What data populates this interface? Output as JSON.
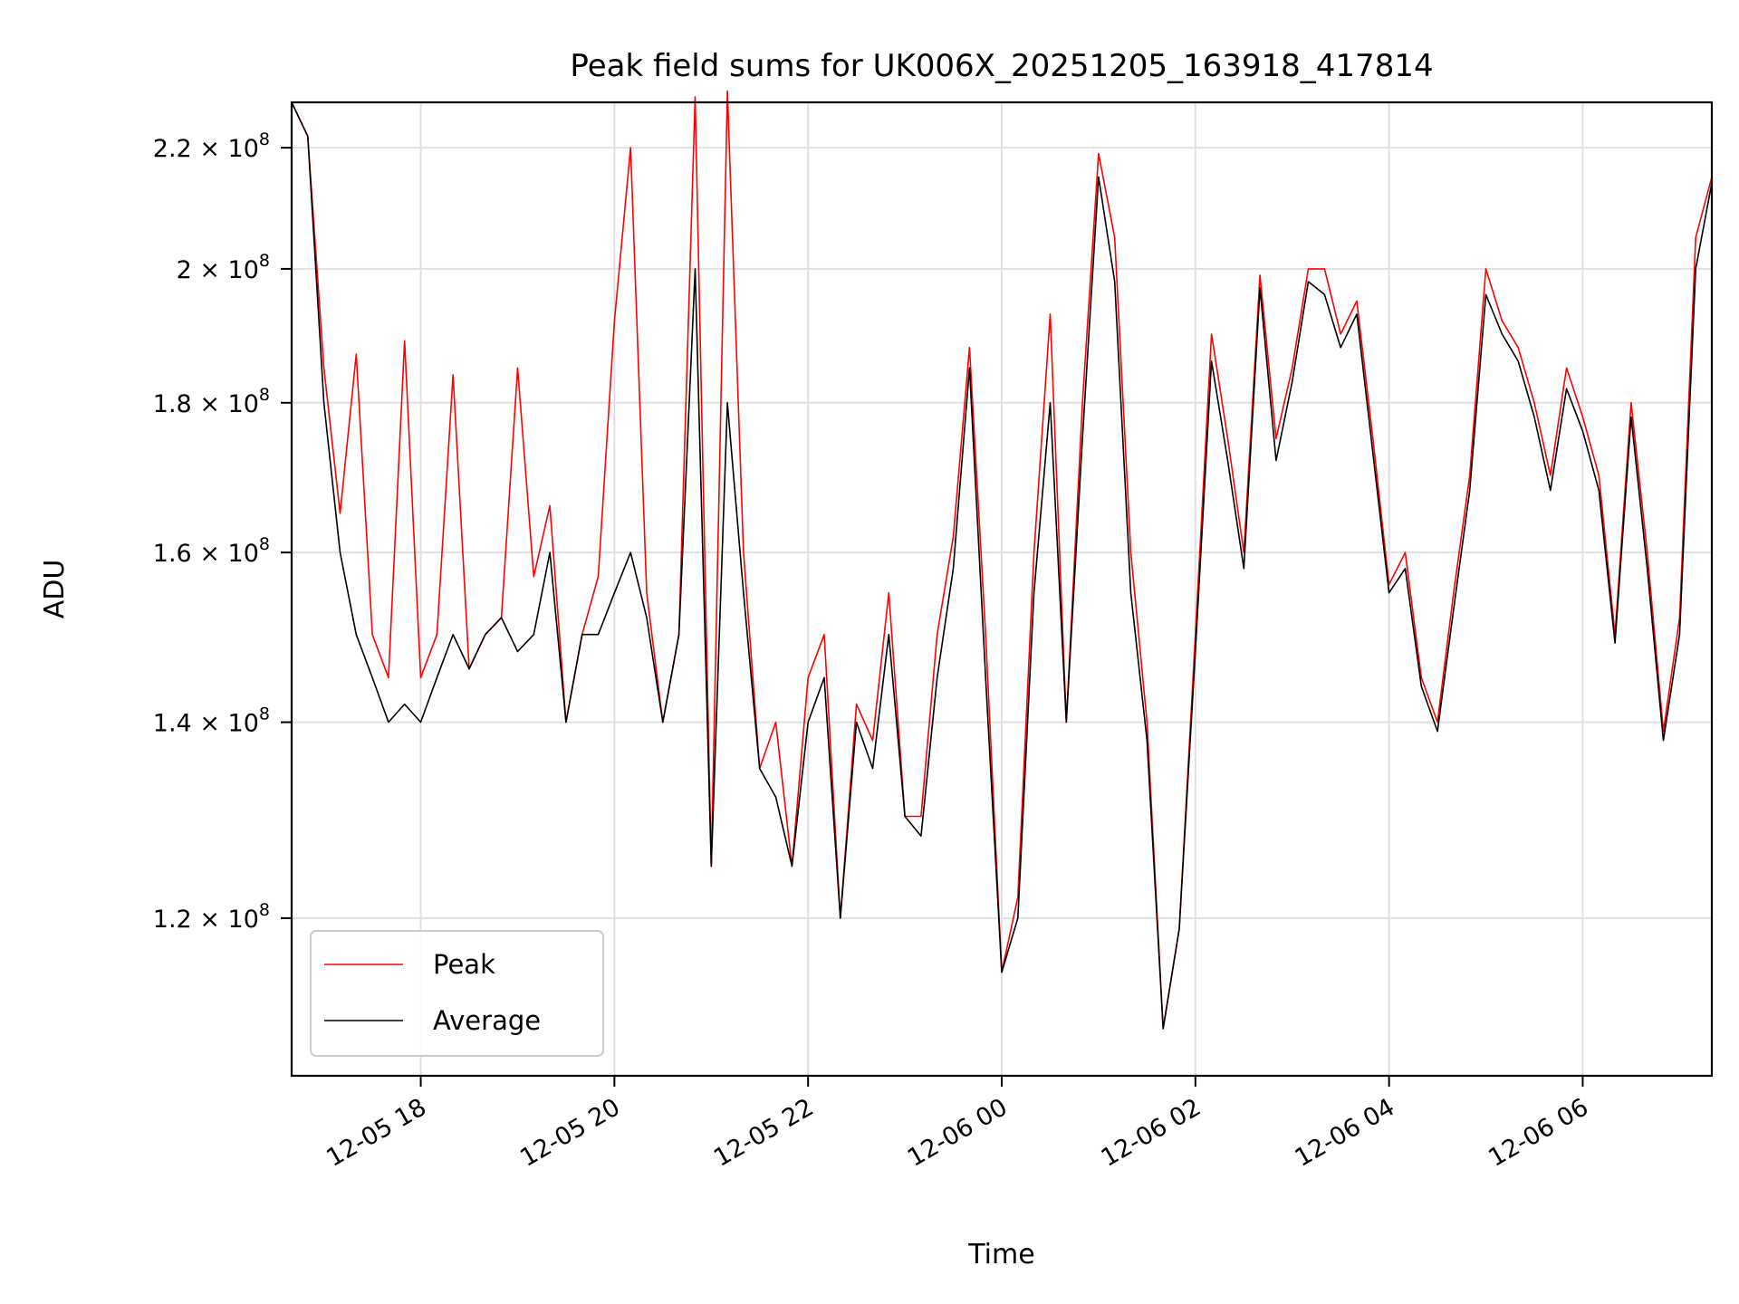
{
  "chart_data": {
    "type": "line",
    "title": "Peak field sums for UK006X_20251205_163918_417814",
    "xlabel": "Time",
    "ylabel": "ADU",
    "y_scale": "log",
    "grid": true,
    "legend_position": "lower-left",
    "xlim": [
      "2025-12-05 16:40",
      "2025-12-06 07:20"
    ],
    "ylim": [
      106000000,
      228000000
    ],
    "x_ticks": [
      "12-05 18",
      "12-05 20",
      "12-05 22",
      "12-06 00",
      "12-06 02",
      "12-06 04",
      "12-06 06"
    ],
    "y_ticks": [
      {
        "value": 120000000,
        "mantissa": "1.2",
        "base": "10",
        "exp": "8"
      },
      {
        "value": 140000000,
        "mantissa": "1.4",
        "base": "10",
        "exp": "8"
      },
      {
        "value": 160000000,
        "mantissa": "1.6",
        "base": "10",
        "exp": "8"
      },
      {
        "value": 180000000,
        "mantissa": "1.8",
        "base": "10",
        "exp": "8"
      },
      {
        "value": 200000000,
        "mantissa": "2",
        "base": "10",
        "exp": "8"
      },
      {
        "value": 220000000,
        "mantissa": "2.2",
        "base": "10",
        "exp": "8"
      }
    ],
    "series": [
      {
        "name": "Peak",
        "color": "#ff0000",
        "x": [
          "2025-12-05 16:40",
          "2025-12-05 16:50",
          "2025-12-05 17:00",
          "2025-12-05 17:10",
          "2025-12-05 17:20",
          "2025-12-05 17:30",
          "2025-12-05 17:40",
          "2025-12-05 17:50",
          "2025-12-05 18:00",
          "2025-12-05 18:10",
          "2025-12-05 18:20",
          "2025-12-05 18:30",
          "2025-12-05 18:40",
          "2025-12-05 18:50",
          "2025-12-05 19:00",
          "2025-12-05 19:10",
          "2025-12-05 19:20",
          "2025-12-05 19:30",
          "2025-12-05 19:40",
          "2025-12-05 19:50",
          "2025-12-05 20:00",
          "2025-12-05 20:10",
          "2025-12-05 20:20",
          "2025-12-05 20:30",
          "2025-12-05 20:40",
          "2025-12-05 20:50",
          "2025-12-05 21:00",
          "2025-12-05 21:10",
          "2025-12-05 21:20",
          "2025-12-05 21:30",
          "2025-12-05 21:40",
          "2025-12-05 21:50",
          "2025-12-05 22:00",
          "2025-12-05 22:10",
          "2025-12-05 22:20",
          "2025-12-05 22:30",
          "2025-12-05 22:40",
          "2025-12-05 22:50",
          "2025-12-05 23:00",
          "2025-12-05 23:10",
          "2025-12-05 23:20",
          "2025-12-05 23:30",
          "2025-12-05 23:40",
          "2025-12-05 23:50",
          "2025-12-06 00:00",
          "2025-12-06 00:10",
          "2025-12-06 00:20",
          "2025-12-06 00:30",
          "2025-12-06 00:40",
          "2025-12-06 00:50",
          "2025-12-06 01:00",
          "2025-12-06 01:10",
          "2025-12-06 01:20",
          "2025-12-06 01:30",
          "2025-12-06 01:40",
          "2025-12-06 01:50",
          "2025-12-06 02:00",
          "2025-12-06 02:10",
          "2025-12-06 02:20",
          "2025-12-06 02:30",
          "2025-12-06 02:40",
          "2025-12-06 02:50",
          "2025-12-06 03:00",
          "2025-12-06 03:10",
          "2025-12-06 03:20",
          "2025-12-06 03:30",
          "2025-12-06 03:40",
          "2025-12-06 03:50",
          "2025-12-06 04:00",
          "2025-12-06 04:10",
          "2025-12-06 04:20",
          "2025-12-06 04:30",
          "2025-12-06 04:40",
          "2025-12-06 04:50",
          "2025-12-06 05:00",
          "2025-12-06 05:10",
          "2025-12-06 05:20",
          "2025-12-06 05:30",
          "2025-12-06 05:40",
          "2025-12-06 05:50",
          "2025-12-06 06:00",
          "2025-12-06 06:10",
          "2025-12-06 06:20",
          "2025-12-06 06:30",
          "2025-12-06 06:40",
          "2025-12-06 06:50",
          "2025-12-06 07:00",
          "2025-12-06 07:10",
          "2025-12-06 07:20"
        ],
        "values": [
          228000000,
          222000000,
          185000000,
          165000000,
          187000000,
          150000000,
          145000000,
          189000000,
          145000000,
          150000000,
          184000000,
          146000000,
          150000000,
          152000000,
          185000000,
          157000000,
          166000000,
          140000000,
          150000000,
          157000000,
          192000000,
          220000000,
          155000000,
          140000000,
          150000000,
          229000000,
          125000000,
          230000000,
          160000000,
          135000000,
          140000000,
          125000000,
          145000000,
          150000000,
          120000000,
          142000000,
          138000000,
          155000000,
          130000000,
          130000000,
          150000000,
          162000000,
          188000000,
          150000000,
          115000000,
          122000000,
          160000000,
          193000000,
          140000000,
          180000000,
          219000000,
          205000000,
          160000000,
          140000000,
          110000000,
          119000000,
          150000000,
          190000000,
          175000000,
          160000000,
          199000000,
          175000000,
          185000000,
          200000000,
          200000000,
          190000000,
          195000000,
          175000000,
          156000000,
          160000000,
          145000000,
          140000000,
          155000000,
          170000000,
          200000000,
          192000000,
          188000000,
          180000000,
          170000000,
          185000000,
          178000000,
          170000000,
          150000000,
          180000000,
          160000000,
          139000000,
          152000000,
          205000000,
          215000000
        ]
      },
      {
        "name": "Average",
        "color": "#000000",
        "x": [
          "2025-12-05 16:40",
          "2025-12-05 16:50",
          "2025-12-05 17:00",
          "2025-12-05 17:10",
          "2025-12-05 17:20",
          "2025-12-05 17:30",
          "2025-12-05 17:40",
          "2025-12-05 17:50",
          "2025-12-05 18:00",
          "2025-12-05 18:10",
          "2025-12-05 18:20",
          "2025-12-05 18:30",
          "2025-12-05 18:40",
          "2025-12-05 18:50",
          "2025-12-05 19:00",
          "2025-12-05 19:10",
          "2025-12-05 19:20",
          "2025-12-05 19:30",
          "2025-12-05 19:40",
          "2025-12-05 19:50",
          "2025-12-05 20:00",
          "2025-12-05 20:10",
          "2025-12-05 20:20",
          "2025-12-05 20:30",
          "2025-12-05 20:40",
          "2025-12-05 20:50",
          "2025-12-05 21:00",
          "2025-12-05 21:10",
          "2025-12-05 21:20",
          "2025-12-05 21:30",
          "2025-12-05 21:40",
          "2025-12-05 21:50",
          "2025-12-05 22:00",
          "2025-12-05 22:10",
          "2025-12-05 22:20",
          "2025-12-05 22:30",
          "2025-12-05 22:40",
          "2025-12-05 22:50",
          "2025-12-05 23:00",
          "2025-12-05 23:10",
          "2025-12-05 23:20",
          "2025-12-05 23:30",
          "2025-12-05 23:40",
          "2025-12-05 23:50",
          "2025-12-06 00:00",
          "2025-12-06 00:10",
          "2025-12-06 00:20",
          "2025-12-06 00:30",
          "2025-12-06 00:40",
          "2025-12-06 00:50",
          "2025-12-06 01:00",
          "2025-12-06 01:10",
          "2025-12-06 01:20",
          "2025-12-06 01:30",
          "2025-12-06 01:40",
          "2025-12-06 01:50",
          "2025-12-06 02:00",
          "2025-12-06 02:10",
          "2025-12-06 02:20",
          "2025-12-06 02:30",
          "2025-12-06 02:40",
          "2025-12-06 02:50",
          "2025-12-06 03:00",
          "2025-12-06 03:10",
          "2025-12-06 03:20",
          "2025-12-06 03:30",
          "2025-12-06 03:40",
          "2025-12-06 03:50",
          "2025-12-06 04:00",
          "2025-12-06 04:10",
          "2025-12-06 04:20",
          "2025-12-06 04:30",
          "2025-12-06 04:40",
          "2025-12-06 04:50",
          "2025-12-06 05:00",
          "2025-12-06 05:10",
          "2025-12-06 05:20",
          "2025-12-06 05:30",
          "2025-12-06 05:40",
          "2025-12-06 05:50",
          "2025-12-06 06:00",
          "2025-12-06 06:10",
          "2025-12-06 06:20",
          "2025-12-06 06:30",
          "2025-12-06 06:40",
          "2025-12-06 06:50",
          "2025-12-06 07:00",
          "2025-12-06 07:10",
          "2025-12-06 07:20"
        ],
        "values": [
          228000000,
          222000000,
          180000000,
          160000000,
          150000000,
          145000000,
          140000000,
          142000000,
          140000000,
          145000000,
          150000000,
          146000000,
          150000000,
          152000000,
          148000000,
          150000000,
          160000000,
          140000000,
          150000000,
          150000000,
          155000000,
          160000000,
          152000000,
          140000000,
          150000000,
          200000000,
          125000000,
          180000000,
          155000000,
          135000000,
          132000000,
          125000000,
          140000000,
          145000000,
          120000000,
          140000000,
          135000000,
          150000000,
          130000000,
          128000000,
          145000000,
          158000000,
          185000000,
          145000000,
          115000000,
          120000000,
          155000000,
          180000000,
          140000000,
          175000000,
          215000000,
          198000000,
          155000000,
          138000000,
          110000000,
          119000000,
          148000000,
          186000000,
          172000000,
          158000000,
          197000000,
          172000000,
          183000000,
          198000000,
          196000000,
          188000000,
          193000000,
          173000000,
          155000000,
          158000000,
          144000000,
          139000000,
          153000000,
          168000000,
          196000000,
          190000000,
          186000000,
          178000000,
          168000000,
          182000000,
          176000000,
          168000000,
          149000000,
          178000000,
          158000000,
          138000000,
          150000000,
          200000000,
          214000000
        ]
      }
    ]
  }
}
